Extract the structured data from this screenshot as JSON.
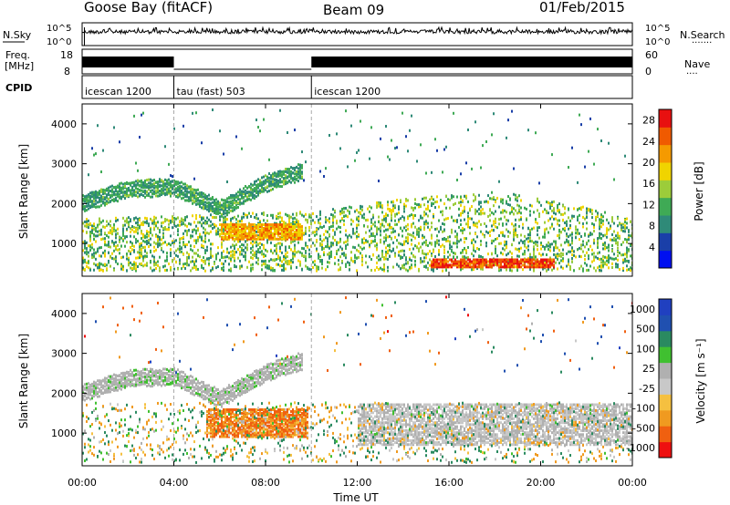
{
  "header": {
    "station": "Goose Bay (fitACF)",
    "beam": "Beam 09",
    "date": "01/Feb/2015"
  },
  "strips": {
    "nsky_label": "N.Sky",
    "nsky_ticks": [
      "10^5",
      "10^0"
    ],
    "nsearch_label": "N.Search",
    "nsearch_ticks": [
      "10^5",
      "10^0"
    ],
    "freq_label": "Freq.",
    "freq_unit": "[MHz]",
    "freq_ticks": [
      "18",
      "8"
    ],
    "nave_label": "Nave",
    "nave_ticks": [
      "60",
      "0"
    ],
    "cpid_label": "CPID",
    "cpid_segments": [
      {
        "label": "icescan 1200",
        "start": "00:00",
        "end": "04:00"
      },
      {
        "label": "tau (fast) 503",
        "start": "04:00",
        "end": "10:00"
      },
      {
        "label": "icescan 1200",
        "start": "10:00",
        "end": "24:00"
      }
    ]
  },
  "colors": {
    "power": [
      "#0010f0",
      "#1a3fa8",
      "#2f8a78",
      "#3faa55",
      "#9ccc3a",
      "#f0d400",
      "#f59a00",
      "#f05a00",
      "#e81010"
    ],
    "velocity": [
      "#ee1010",
      "#f06010",
      "#f09a20",
      "#f5c040",
      "#c8c8c8",
      "#b0b0b0",
      "#40c030",
      "#2a8a60",
      "#2050b0",
      "#2040c0"
    ],
    "axis": "#000000",
    "grid": "#bbbbbb"
  },
  "chart_data": [
    {
      "type": "heatmap",
      "name": "power",
      "ylabel": "Slant Range [km]",
      "xlim": [
        "00:00",
        "24:00"
      ],
      "ylim": [
        180,
        4500
      ],
      "yticks": [
        1000,
        2000,
        3000,
        4000
      ],
      "colorbar": {
        "label": "Power [dB]",
        "ticks": [
          4,
          8,
          12,
          16,
          20,
          24,
          28
        ],
        "range": [
          0,
          30
        ]
      },
      "features": [
        {
          "desc": "arc",
          "t": [
            0,
            2,
            4,
            6,
            8,
            9.6
          ],
          "range": [
            2000,
            2350,
            2400,
            1850,
            2500,
            2800
          ],
          "level": 10
        },
        {
          "desc": "near-range",
          "t": [
            0,
            10,
            14,
            18,
            22,
            24
          ],
          "range": [
            500,
            700,
            1000,
            1200,
            800,
            500
          ],
          "level": 14
        },
        {
          "desc": "ionospheric strong",
          "t": [
            6.0,
            9.6
          ],
          "range": [
            1100,
            1500
          ],
          "level": 22
        },
        {
          "desc": "ionospheric strong",
          "t": [
            15.2,
            20.6
          ],
          "range": [
            400,
            600
          ],
          "level": 27
        }
      ]
    },
    {
      "type": "heatmap",
      "name": "velocity",
      "ylabel": "Slant Range [km]",
      "xlabel": "Time UT",
      "xlim": [
        "00:00",
        "24:00"
      ],
      "ylim": [
        180,
        4500
      ],
      "yticks": [
        1000,
        2000,
        3000,
        4000
      ],
      "xticks": [
        "00:00",
        "04:00",
        "08:00",
        "12:00",
        "16:00",
        "20:00",
        "00:00"
      ],
      "colorbar": {
        "label": "Velocity [m s⁻¹]",
        "ticks": [
          1000,
          500,
          100,
          25,
          -25,
          -100,
          -500,
          -1000
        ]
      },
      "features": [
        {
          "desc": "arc",
          "t": [
            0,
            2,
            4,
            6,
            8,
            9.6
          ],
          "range": [
            2000,
            2350,
            2400,
            1850,
            2500,
            2800
          ],
          "velocity": 0
        },
        {
          "desc": "ionospheric flow",
          "t": [
            5.4,
            9.8
          ],
          "range": [
            900,
            1600
          ],
          "velocity": -300
        },
        {
          "desc": "ground scatter",
          "t": [
            12,
            24
          ],
          "range": [
            700,
            1700
          ],
          "velocity": 0
        }
      ]
    }
  ]
}
